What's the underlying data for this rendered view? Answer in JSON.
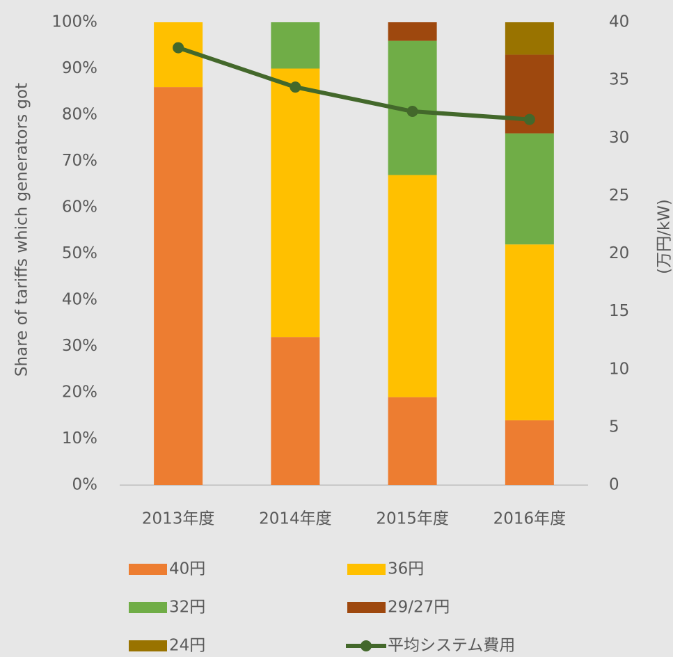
{
  "chart_data": {
    "type": "bar",
    "stacked": true,
    "categories": [
      "2013年度",
      "2014年度",
      "2015年度",
      "2016年度"
    ],
    "series": [
      {
        "name": "40円",
        "color": "#ed7d31",
        "values": [
          86,
          32,
          19,
          14
        ]
      },
      {
        "name": "36円",
        "color": "#ffc000",
        "values": [
          14,
          58,
          48,
          38
        ]
      },
      {
        "name": "32円",
        "color": "#70ad47",
        "values": [
          0,
          10,
          29,
          24
        ]
      },
      {
        "name": "29/27円",
        "color": "#9e480e",
        "values": [
          0,
          0,
          4,
          17
        ]
      },
      {
        "name": "24円",
        "color": "#997300",
        "values": [
          0,
          0,
          0,
          7
        ]
      },
      {
        "name": "平均システム費用",
        "color": "#43682b",
        "type": "line",
        "axis": "y2",
        "values": [
          37.8,
          34.4,
          32.3,
          31.6
        ]
      }
    ],
    "ylabel": "Share of tariffs which generators got",
    "y2label": "(万円/kW)",
    "ylim": [
      0,
      100
    ],
    "yticks": [
      {
        "value": 0,
        "label": "0%"
      },
      {
        "value": 10,
        "label": "10%"
      },
      {
        "value": 20,
        "label": "20%"
      },
      {
        "value": 30,
        "label": "30%"
      },
      {
        "value": 40,
        "label": "40%"
      },
      {
        "value": 50,
        "label": "50%"
      },
      {
        "value": 60,
        "label": "60%"
      },
      {
        "value": 70,
        "label": "70%"
      },
      {
        "value": 80,
        "label": "80%"
      },
      {
        "value": 90,
        "label": "90%"
      },
      {
        "value": 100,
        "label": "100%"
      }
    ],
    "y2lim": [
      0,
      40
    ],
    "y2ticks": [
      0,
      5,
      10,
      15,
      20,
      25,
      30,
      35,
      40
    ],
    "legend": "bottom"
  }
}
